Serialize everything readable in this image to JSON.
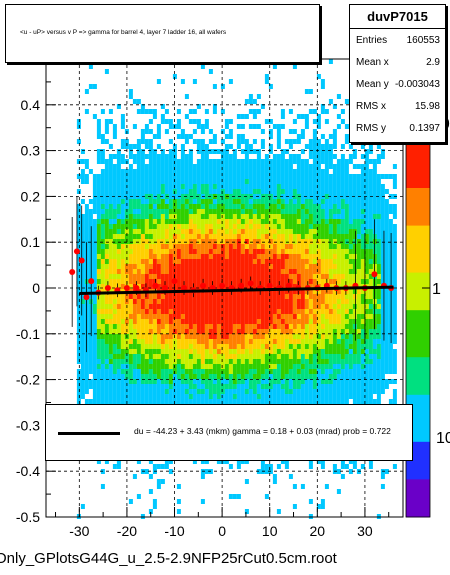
{
  "chart_data": {
    "type": "heatmap",
    "title": "<u - uP>       versus   v P =>  gamma for barrel 4, layer 7 ladder 16, all wafers",
    "xlabel": "",
    "ylabel": "",
    "xlim": [
      -37,
      38
    ],
    "ylim": [
      -0.5,
      0.5
    ],
    "x_ticks": [
      -30,
      -20,
      -10,
      0,
      10,
      20,
      30
    ],
    "y_ticks": [
      -0.5,
      -0.4,
      -0.3,
      -0.2,
      -0.1,
      0,
      0.1,
      0.2,
      0.3,
      0.4
    ],
    "y_tick_labels": [
      "-0.5",
      "-0.4",
      "-0.3",
      "-0.2",
      "-0.1",
      "0",
      "0.1",
      "0.2",
      "0.3",
      "0.4"
    ],
    "grid": true,
    "z_scale": "log",
    "z_tick_labels": [
      "10",
      "1"
    ],
    "profile_points": {
      "x": [
        -31.5,
        -30.5,
        -29.5,
        -28.5,
        -27.5,
        -26,
        -24,
        -22,
        -20,
        -18,
        -16,
        -14,
        -12,
        -10,
        -8,
        -6,
        -4,
        -2,
        0,
        2,
        4,
        6,
        8,
        10,
        12,
        14,
        16,
        18,
        20,
        22,
        24,
        26,
        28,
        30,
        32,
        34,
        35.5
      ],
      "y": [
        0.035,
        0.08,
        0.06,
        -0.02,
        0.015,
        -0.01,
        0.0,
        -0.005,
        0.0,
        0.0,
        -0.005,
        0.005,
        0.0,
        0.015,
        0.0,
        -0.005,
        0.005,
        0.0,
        0.005,
        0.0,
        0.005,
        0.01,
        0.0,
        0.005,
        0.0,
        0.005,
        0.0,
        0.0,
        0.0,
        0.005,
        0.0,
        0.0,
        0.005,
        0.0,
        0.03,
        0.005,
        0.0
      ]
    },
    "fit_line": {
      "x": [
        -30,
        36
      ],
      "y": [
        -0.012,
        0.002
      ]
    }
  },
  "title_box": {
    "text": "<u - uP>       versus   v P =>  gamma for barrel 4, layer 7 ladder 16, all wafers"
  },
  "stats": {
    "name": "duvP7015",
    "rows": [
      {
        "label": "Entries",
        "value": "160553"
      },
      {
        "label": "Mean x",
        "value": "2.9"
      },
      {
        "label": "Mean y",
        "value": "-0.003043"
      },
      {
        "label": "RMS x",
        "value": "15.98"
      },
      {
        "label": "RMS y",
        "value": "0.1397"
      }
    ]
  },
  "fit_text": "du =   -44.23 +   3.43 (mkm) gamma =    0.18 +  0.03 (mrad) prob = 0.722",
  "file_label": "Only_GPlotsG44G_u_2.5-2.9NFP25rCut0.5cm.root",
  "colors": {
    "marker": "#ff0000",
    "fit": "#000000",
    "palette": [
      "#6a00c8",
      "#2030ff",
      "#00c8ff",
      "#00e080",
      "#30d000",
      "#c8f000",
      "#ffd000",
      "#ff8000",
      "#ff2000"
    ]
  }
}
